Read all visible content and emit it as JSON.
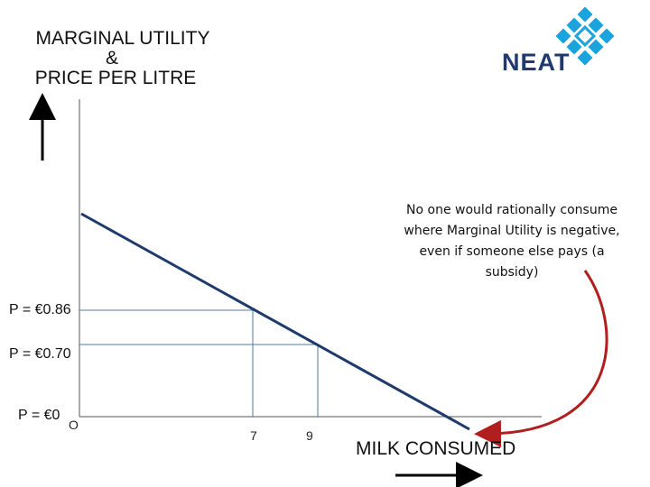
{
  "title": {
    "line1": "MARGINAL UTILITY",
    "line2": "&",
    "line3": "PRICE PER LITRE"
  },
  "logo": {
    "text": "NEAT",
    "icon": "diamond-grid-logo",
    "color": "#1f3b6e",
    "accent": "#1aa3dc"
  },
  "x_axis": {
    "label": "MILK CONSUMED",
    "origin": "O",
    "ticks": [
      "7",
      "9"
    ]
  },
  "price_levels": [
    {
      "label": "P = €0.86",
      "price": 0.86,
      "quantity": 7
    },
    {
      "label": "P = €0.70",
      "price": 0.7,
      "quantity": 9
    },
    {
      "label": "P = €0",
      "price": 0,
      "quantity": null
    }
  ],
  "annotation": {
    "text": "No one would rationally consume where Marginal Utility is negative, even if someone else pays (a subsidy)",
    "arrow_color": "#b01e1e"
  },
  "colors": {
    "demand_line": "#1f3b6e",
    "guide_lines": "#5577aa",
    "axis": "#555555"
  }
}
